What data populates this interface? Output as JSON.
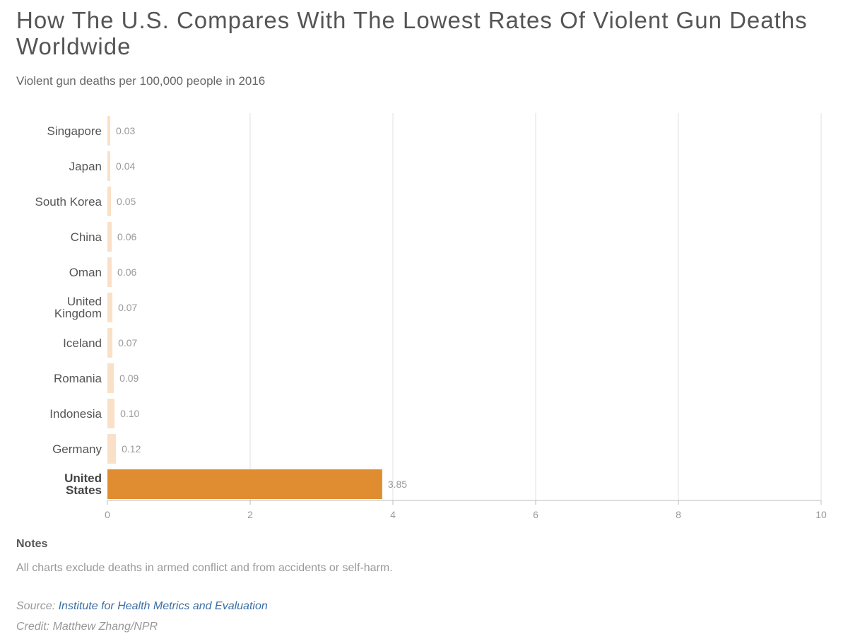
{
  "header": {
    "title": "How The U.S. Compares With The Lowest Rates Of Violent Gun Deaths Worldwide",
    "subtitle": "Violent gun deaths per 100,000 people in 2016"
  },
  "notes": {
    "heading": "Notes",
    "text": "All charts exclude deaths in armed conflict and from accidents or self-harm."
  },
  "source": {
    "label": "Source: ",
    "link_text": "Institute for Health Metrics and Evaluation"
  },
  "credit": "Credit: Matthew Zhang/NPR",
  "colors": {
    "highlight_bar": "#e08c31",
    "other_bar": "#fbe0c8",
    "grid": "#e2e2e2",
    "axis": "#bbbbbb"
  },
  "chart_data": {
    "type": "bar",
    "orientation": "horizontal",
    "categories": [
      "Singapore",
      "Japan",
      "South Korea",
      "China",
      "Oman",
      "United Kingdom",
      "Iceland",
      "Romania",
      "Indonesia",
      "Germany",
      "United States"
    ],
    "values": [
      0.03,
      0.04,
      0.05,
      0.06,
      0.06,
      0.07,
      0.07,
      0.09,
      0.1,
      0.12,
      3.85
    ],
    "value_labels": [
      "0.03",
      "0.04",
      "0.05",
      "0.06",
      "0.06",
      "0.07",
      "0.07",
      "0.09",
      "0.10",
      "0.12",
      "3.85"
    ],
    "highlight": "United States",
    "xlim": [
      0,
      10
    ],
    "xticks": [
      0,
      2,
      4,
      6,
      8,
      10
    ],
    "grid": true
  }
}
